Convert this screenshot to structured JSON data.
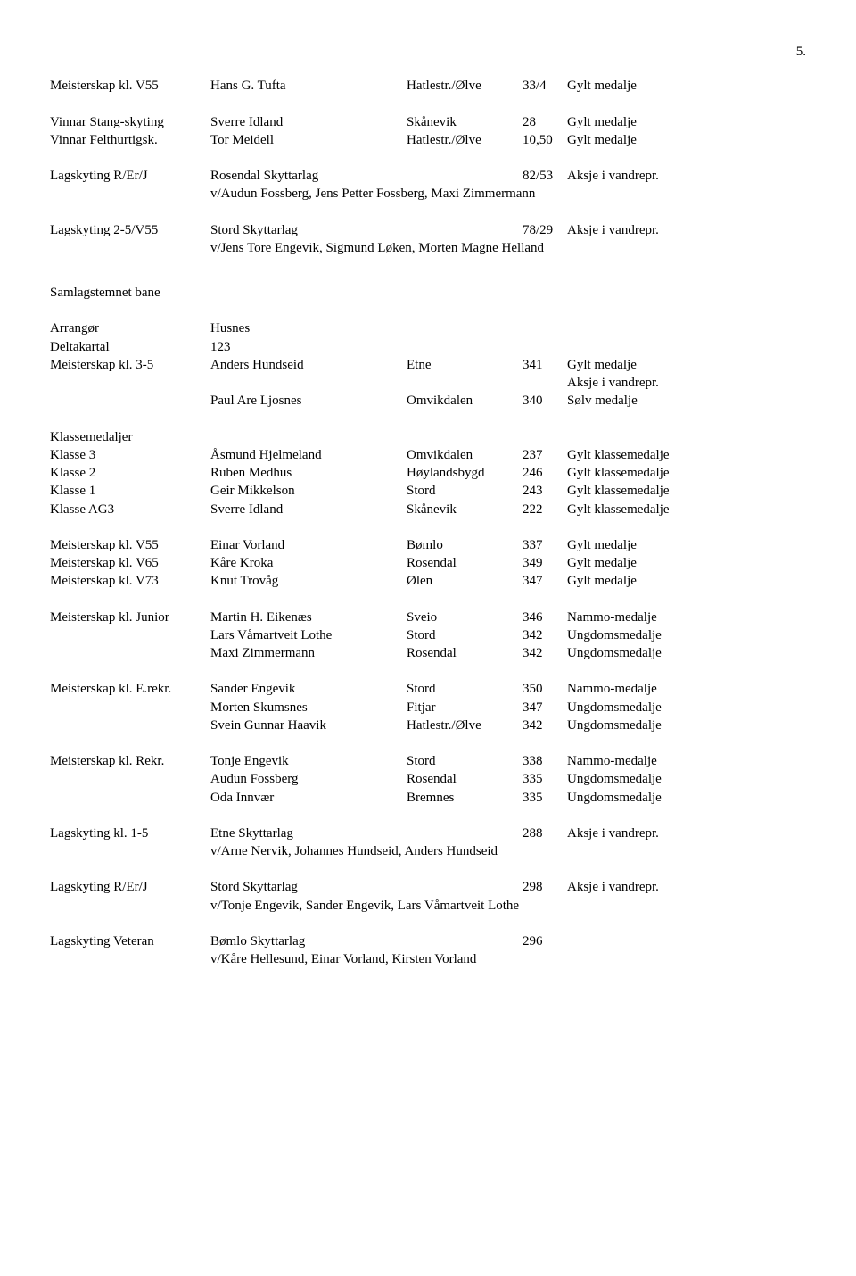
{
  "page_number": "5.",
  "top_section": {
    "rows": [
      {
        "label": "Meisterskap kl. V55",
        "name": "Hans G. Tufta",
        "loc": "Hatlestr./Ølve",
        "score": "33/4",
        "award": "Gylt medalje"
      },
      {
        "label": "",
        "name": "",
        "loc": "",
        "score": "",
        "award": ""
      },
      {
        "label": "Vinnar Stang-skyting",
        "name": "Sverre Idland",
        "loc": "Skånevik",
        "score": "28",
        "award": "Gylt medalje"
      },
      {
        "label": "Vinnar Felthurtigsk.",
        "name": "Tor Meidell",
        "loc": "Hatlestr./Ølve",
        "score": "10,50",
        "award": "Gylt medalje"
      }
    ],
    "lag1": {
      "label": "Lagskyting R/Er/J",
      "name": "Rosendal Skyttarlag",
      "loc": "",
      "score": "82/53",
      "award": "Aksje i vandrepr.",
      "sub": "v/Audun Fossberg, Jens Petter Fossberg, Maxi Zimmermann"
    },
    "lag2": {
      "label": "Lagskyting 2-5/V55",
      "name": "Stord Skyttarlag",
      "loc": "",
      "score": "78/29",
      "award": "Aksje i vandrepr.",
      "sub": "v/Jens Tore Engevik, Sigmund Løken, Morten Magne Helland"
    }
  },
  "section_title": "Samlagstemnet bane",
  "arrangor": {
    "label": "Arrangør",
    "value": "Husnes"
  },
  "deltakartal": {
    "label": "Deltakartal",
    "value": "123"
  },
  "meisterskap35": {
    "label": "Meisterskap kl. 3-5",
    "rows": [
      {
        "name": "Anders Hundseid",
        "loc": "Etne",
        "score": "341",
        "award": "Gylt medalje"
      },
      {
        "name": "",
        "loc": "",
        "score": "",
        "award": "Aksje i vandrepr."
      },
      {
        "name": "Paul Are Ljosnes",
        "loc": "Omvikdalen",
        "score": "340",
        "award": "Sølv medalje"
      }
    ]
  },
  "klassemedaljer": {
    "heading": "Klassemedaljer",
    "rows": [
      {
        "label": "Klasse 3",
        "name": "Åsmund Hjelmeland",
        "loc": "Omvikdalen",
        "score": "237",
        "award": "Gylt klassemedalje"
      },
      {
        "label": "Klasse 2",
        "name": "Ruben Medhus",
        "loc": "Høylandsbygd",
        "score": "246",
        "award": "Gylt klassemedalje"
      },
      {
        "label": "Klasse 1",
        "name": "Geir Mikkelson",
        "loc": "Stord",
        "score": "243",
        "award": "Gylt klassemedalje"
      },
      {
        "label": "Klasse AG3",
        "name": "Sverre Idland",
        "loc": "Skånevik",
        "score": "222",
        "award": "Gylt klassemedalje"
      }
    ]
  },
  "vet_rows": [
    {
      "label": "Meisterskap kl. V55",
      "name": "Einar Vorland",
      "loc": "Bømlo",
      "score": "337",
      "award": "Gylt medalje"
    },
    {
      "label": "Meisterskap kl. V65",
      "name": "Kåre Kroka",
      "loc": "Rosendal",
      "score": "349",
      "award": "Gylt medalje"
    },
    {
      "label": "Meisterskap kl. V73",
      "name": "Knut Trovåg",
      "loc": "Ølen",
      "score": "347",
      "award": "Gylt medalje"
    }
  ],
  "junior": {
    "label": "Meisterskap kl. Junior",
    "rows": [
      {
        "name": "Martin H. Eikenæs",
        "loc": "Sveio",
        "score": "346",
        "award": "Nammo-medalje"
      },
      {
        "name": "Lars Våmartveit Lothe",
        "loc": "Stord",
        "score": "342",
        "award": "Ungdomsmedalje"
      },
      {
        "name": "Maxi Zimmermann",
        "loc": "Rosendal",
        "score": "342",
        "award": "Ungdomsmedalje"
      }
    ]
  },
  "erekr": {
    "label": "Meisterskap kl. E.rekr.",
    "rows": [
      {
        "name": "Sander Engevik",
        "loc": "Stord",
        "score": "350",
        "award": "Nammo-medalje"
      },
      {
        "name": "Morten Skumsnes",
        "loc": "Fitjar",
        "score": "347",
        "award": "Ungdomsmedalje"
      },
      {
        "name": "Svein Gunnar Haavik",
        "loc": "Hatlestr./Ølve",
        "score": "342",
        "award": "Ungdomsmedalje"
      }
    ]
  },
  "rekr": {
    "label": "Meisterskap kl. Rekr.",
    "rows": [
      {
        "name": "Tonje Engevik",
        "loc": "Stord",
        "score": "338",
        "award": "Nammo-medalje"
      },
      {
        "name": "Audun Fossberg",
        "loc": "Rosendal",
        "score": "335",
        "award": "Ungdomsmedalje"
      },
      {
        "name": "Oda Innvær",
        "loc": "Bremnes",
        "score": "335",
        "award": "Ungdomsmedalje"
      }
    ]
  },
  "lag15": {
    "label": "Lagskyting kl. 1-5",
    "name": "Etne Skyttarlag",
    "loc": "",
    "score": "288",
    "award": "Aksje i vandrepr.",
    "sub": "v/Arne Nervik, Johannes Hundseid, Anders Hundseid"
  },
  "lagrerj": {
    "label": "Lagskyting R/Er/J",
    "name": "Stord Skyttarlag",
    "loc": "",
    "score": "298",
    "award": "Aksje i vandrepr.",
    "sub": "v/Tonje Engevik, Sander Engevik, Lars Våmartveit Lothe"
  },
  "lagvet": {
    "label": "Lagskyting Veteran",
    "name": "Bømlo Skyttarlag",
    "loc": "",
    "score": "296",
    "award": "",
    "sub": "v/Kåre Hellesund, Einar Vorland, Kirsten Vorland"
  }
}
